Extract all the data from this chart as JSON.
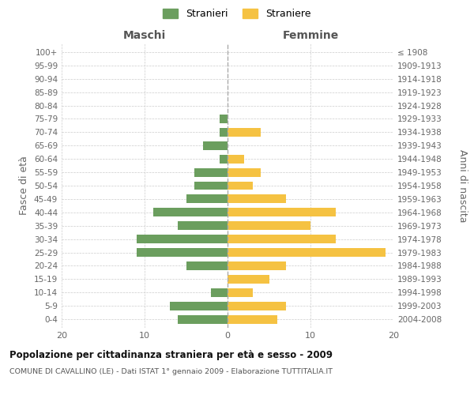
{
  "age_groups": [
    "0-4",
    "5-9",
    "10-14",
    "15-19",
    "20-24",
    "25-29",
    "30-34",
    "35-39",
    "40-44",
    "45-49",
    "50-54",
    "55-59",
    "60-64",
    "65-69",
    "70-74",
    "75-79",
    "80-84",
    "85-89",
    "90-94",
    "95-99",
    "100+"
  ],
  "birth_years": [
    "2004-2008",
    "1999-2003",
    "1994-1998",
    "1989-1993",
    "1984-1988",
    "1979-1983",
    "1974-1978",
    "1969-1973",
    "1964-1968",
    "1959-1963",
    "1954-1958",
    "1949-1953",
    "1944-1948",
    "1939-1943",
    "1934-1938",
    "1929-1933",
    "1924-1928",
    "1919-1923",
    "1914-1918",
    "1909-1913",
    "≤ 1908"
  ],
  "maschi": [
    6,
    7,
    2,
    0,
    5,
    11,
    11,
    6,
    9,
    5,
    4,
    4,
    1,
    3,
    1,
    1,
    0,
    0,
    0,
    0,
    0
  ],
  "femmine": [
    6,
    7,
    3,
    5,
    7,
    19,
    13,
    10,
    13,
    7,
    3,
    4,
    2,
    0,
    4,
    0,
    0,
    0,
    0,
    0,
    0
  ],
  "color_maschi": "#6b9e5e",
  "color_femmine": "#f5c242",
  "title": "Popolazione per cittadinanza straniera per età e sesso - 2009",
  "subtitle": "COMUNE DI CAVALLINO (LE) - Dati ISTAT 1° gennaio 2009 - Elaborazione TUTTITALIA.IT",
  "label_maschi": "Maschi",
  "label_femmine": "Femmine",
  "ylabel_left": "Fasce di età",
  "ylabel_right": "Anni di nascita",
  "legend_stranieri": "Stranieri",
  "legend_straniere": "Straniere",
  "xlim": 20,
  "background_color": "#ffffff",
  "grid_color": "#cccccc"
}
